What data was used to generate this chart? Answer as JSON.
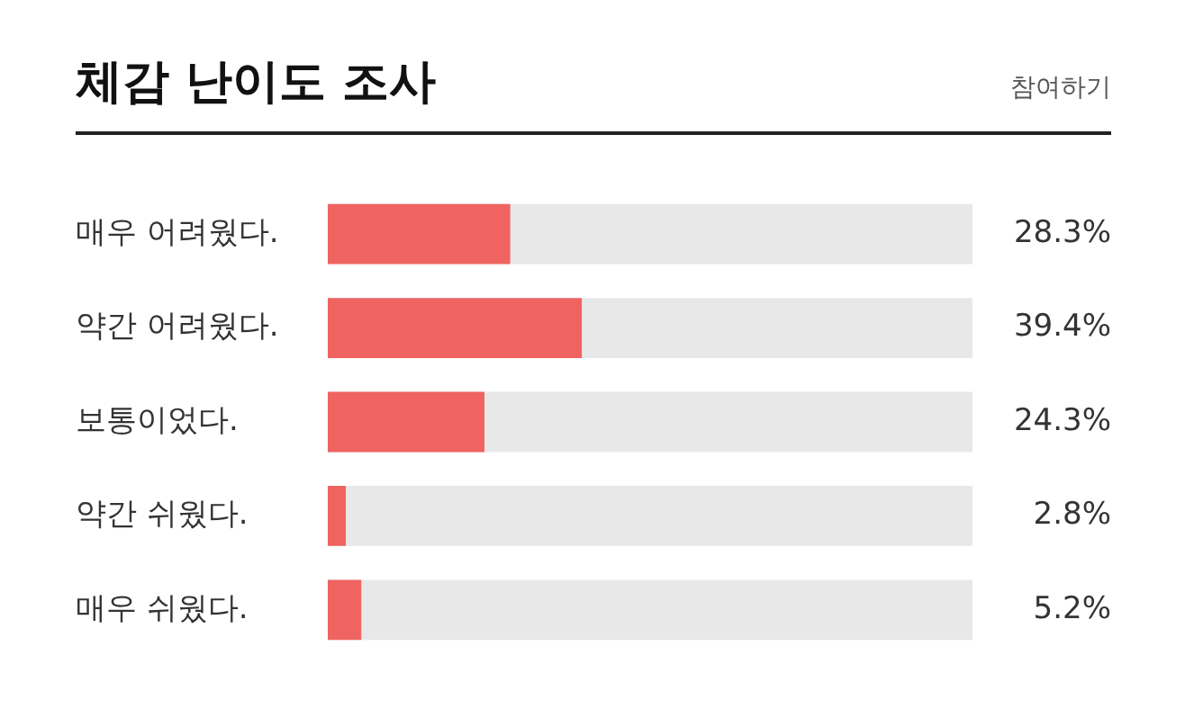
{
  "chart_data": {
    "type": "bar",
    "orientation": "horizontal",
    "title": "체감 난이도 조사",
    "annotations": [
      "참여하기"
    ],
    "categories": [
      "매우 어려웠다.",
      "약간 어려웠다.",
      "보통이었다.",
      "약간 쉬웠다.",
      "매우 쉬웠다."
    ],
    "values": [
      28.3,
      39.4,
      24.3,
      2.8,
      5.2
    ],
    "value_labels": [
      "28.3%",
      "39.4%",
      "24.3%",
      "2.8%",
      "5.2%"
    ],
    "color": "#ef6461",
    "xlim": [
      0,
      100
    ],
    "tick_labels": "y",
    "grid": false
  }
}
